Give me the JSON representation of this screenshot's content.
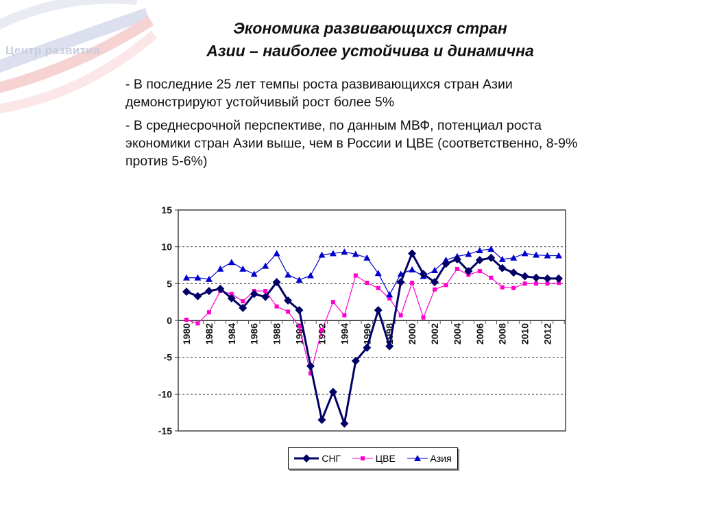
{
  "logo": {
    "text": "Центр развития"
  },
  "title": {
    "line1": "Экономика развивающихся стран",
    "line2": "Азии – наиболее устойчива и динамична"
  },
  "bullets": [
    "- В последние 25 лет темпы роста развивающихся стран Азии демонстрируют устойчивый рост более 5%",
    "- В среднесрочной перспективе, по данным МВФ, потенциал роста экономики стран Азии выше, чем в России и ЦВЕ (соответственно, 8-9% против 5-6%)"
  ],
  "chart_data": {
    "type": "line",
    "x": [
      1980,
      1981,
      1982,
      1983,
      1984,
      1985,
      1986,
      1987,
      1988,
      1989,
      1990,
      1991,
      1992,
      1993,
      1994,
      1995,
      1996,
      1997,
      1998,
      1999,
      2000,
      2001,
      2002,
      2003,
      2004,
      2005,
      2006,
      2007,
      2008,
      2009,
      2010,
      2011,
      2012,
      2013
    ],
    "x_tick_labels": [
      "1980",
      "1982",
      "1984",
      "1986",
      "1988",
      "1990",
      "1992",
      "1994",
      "1996",
      "1998",
      "2000",
      "2002",
      "2004",
      "2006",
      "2008",
      "2010",
      "2012"
    ],
    "y_tick_labels": [
      "15",
      "10",
      "5",
      "0",
      "-5",
      "-10",
      "-15"
    ],
    "ylim": [
      -15,
      15
    ],
    "grid": "horizontal dashed",
    "legend": "bottom",
    "series": [
      {
        "name": "СНГ",
        "color": "#000066",
        "marker": "diamond",
        "values": [
          3.9,
          3.3,
          4.0,
          4.3,
          3.0,
          1.7,
          3.6,
          3.2,
          5.2,
          2.7,
          1.4,
          -6.2,
          -13.5,
          -9.7,
          -14.0,
          -5.5,
          -3.7,
          1.4,
          -3.5,
          5.2,
          9.1,
          6.3,
          5.2,
          7.7,
          8.3,
          6.7,
          8.2,
          8.5,
          7.1,
          6.5,
          6.0,
          5.8,
          5.7,
          5.7
        ]
      },
      {
        "name": "ЦВЕ",
        "color": "#ff00cc",
        "marker": "square",
        "values": [
          0.1,
          -0.4,
          1.1,
          4.0,
          3.6,
          2.6,
          4.0,
          4.0,
          1.9,
          1.2,
          -0.8,
          -7.2,
          -1.3,
          2.5,
          0.7,
          6.1,
          5.1,
          4.4,
          3.0,
          0.7,
          5.1,
          0.4,
          4.2,
          4.8,
          7.0,
          6.2,
          6.7,
          5.8,
          4.5,
          4.4,
          5.0,
          5.0,
          5.0,
          5.1
        ]
      },
      {
        "name": "Азия",
        "color": "#0000cc",
        "marker": "triangle",
        "values": [
          5.8,
          5.8,
          5.6,
          7.0,
          7.9,
          7.0,
          6.3,
          7.4,
          9.1,
          6.2,
          5.5,
          6.1,
          8.9,
          9.1,
          9.3,
          9.0,
          8.5,
          6.4,
          3.5,
          6.3,
          6.9,
          6.0,
          6.8,
          8.2,
          8.7,
          9.0,
          9.5,
          9.7,
          8.3,
          8.5,
          9.1,
          8.9,
          8.8,
          8.8
        ]
      }
    ]
  }
}
